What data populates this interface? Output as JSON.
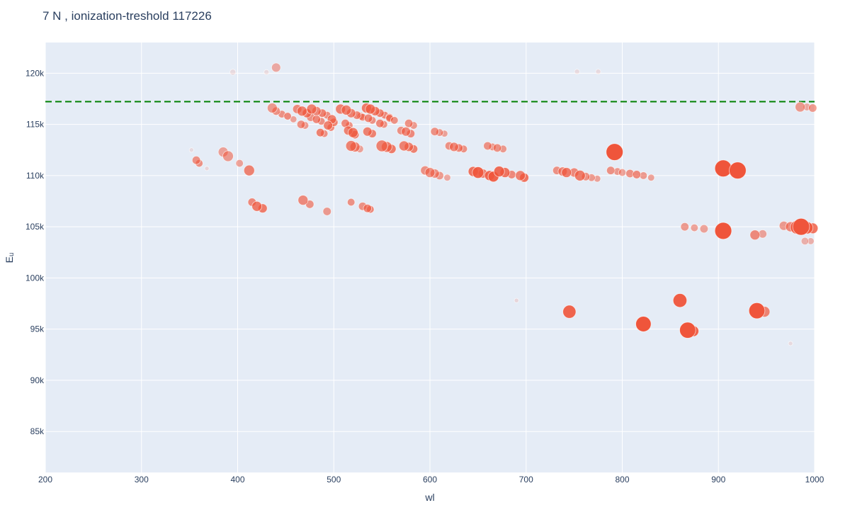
{
  "chart_data": {
    "type": "scatter",
    "title": "7 N , ionization-treshold 117226",
    "xlabel": "wl",
    "ylabel": "Eᵤ",
    "xlim": [
      200,
      1000
    ],
    "ylim": [
      81000,
      123000
    ],
    "x_ticks": [
      200,
      300,
      400,
      500,
      600,
      700,
      800,
      900,
      1000
    ],
    "x_tick_labels": [
      "200",
      "300",
      "400",
      "500",
      "600",
      "700",
      "800",
      "900",
      "1000"
    ],
    "y_ticks": [
      85000,
      90000,
      95000,
      100000,
      105000,
      110000,
      115000,
      120000
    ],
    "y_tick_labels": [
      "85k",
      "90k",
      "95k",
      "100k",
      "105k",
      "110k",
      "115k",
      "120k"
    ],
    "grid": true,
    "colors": {
      "plot_bg": "#e5ecf6",
      "grid": "#ffffff",
      "marker": "#ef553b",
      "threshold_line": "#008000",
      "text": "#2a3f5f"
    },
    "threshold": {
      "label": "ionization-treshold",
      "value": 117226
    },
    "points": [
      [
        395,
        120100,
        0.2,
        0.1
      ],
      [
        430,
        120100,
        0.15,
        0.1
      ],
      [
        440,
        120550,
        0.4,
        0.45
      ],
      [
        753,
        120150,
        0.15,
        0.1
      ],
      [
        775,
        120150,
        0.15,
        0.1
      ],
      [
        352,
        112500,
        0.1,
        0.1
      ],
      [
        357,
        111500,
        0.35,
        0.6
      ],
      [
        360,
        111200,
        0.3,
        0.6
      ],
      [
        368,
        110700,
        0.1,
        0.15
      ],
      [
        385,
        112300,
        0.45,
        0.5
      ],
      [
        390,
        111900,
        0.5,
        0.55
      ],
      [
        402,
        111200,
        0.3,
        0.5
      ],
      [
        412,
        110500,
        0.5,
        0.7
      ],
      [
        436,
        116600,
        0.45,
        0.55
      ],
      [
        440,
        116300,
        0.35,
        0.6
      ],
      [
        446,
        116000,
        0.3,
        0.6
      ],
      [
        452,
        115800,
        0.3,
        0.65
      ],
      [
        458,
        115500,
        0.25,
        0.5
      ],
      [
        462,
        116500,
        0.4,
        0.65
      ],
      [
        467,
        116300,
        0.45,
        0.7
      ],
      [
        472,
        116100,
        0.4,
        0.75
      ],
      [
        477,
        116500,
        0.45,
        0.7
      ],
      [
        482,
        116300,
        0.4,
        0.65
      ],
      [
        488,
        116100,
        0.35,
        0.7
      ],
      [
        493,
        115900,
        0.3,
        0.6
      ],
      [
        476,
        115700,
        0.35,
        0.6
      ],
      [
        482,
        115500,
        0.35,
        0.65
      ],
      [
        487,
        115300,
        0.3,
        0.6
      ],
      [
        498,
        115500,
        0.4,
        0.7
      ],
      [
        500,
        115200,
        0.35,
        0.7
      ],
      [
        466,
        115000,
        0.35,
        0.6
      ],
      [
        470,
        114900,
        0.3,
        0.55
      ],
      [
        494,
        114900,
        0.4,
        0.7
      ],
      [
        497,
        114700,
        0.3,
        0.65
      ],
      [
        486,
        114200,
        0.35,
        0.7
      ],
      [
        490,
        114100,
        0.3,
        0.6
      ],
      [
        507,
        116500,
        0.45,
        0.7
      ],
      [
        513,
        116400,
        0.45,
        0.7
      ],
      [
        518,
        116100,
        0.4,
        0.7
      ],
      [
        524,
        115900,
        0.35,
        0.65
      ],
      [
        528,
        115800,
        0.3,
        0.6
      ],
      [
        534,
        116600,
        0.45,
        0.75
      ],
      [
        538,
        116500,
        0.45,
        0.75
      ],
      [
        543,
        116300,
        0.4,
        0.75
      ],
      [
        548,
        116100,
        0.35,
        0.7
      ],
      [
        553,
        115900,
        0.3,
        0.65
      ],
      [
        558,
        115700,
        0.3,
        0.6
      ],
      [
        530,
        115700,
        0.3,
        0.6
      ],
      [
        536,
        115600,
        0.35,
        0.65
      ],
      [
        540,
        115400,
        0.3,
        0.6
      ],
      [
        558,
        115600,
        0.3,
        0.6
      ],
      [
        563,
        115400,
        0.3,
        0.6
      ],
      [
        512,
        115100,
        0.35,
        0.65
      ],
      [
        516,
        114900,
        0.3,
        0.6
      ],
      [
        548,
        115100,
        0.35,
        0.65
      ],
      [
        552,
        115000,
        0.3,
        0.6
      ],
      [
        578,
        115100,
        0.35,
        0.6
      ],
      [
        583,
        114900,
        0.3,
        0.55
      ],
      [
        515,
        114400,
        0.4,
        0.7
      ],
      [
        520,
        114200,
        0.45,
        0.75
      ],
      [
        522,
        114000,
        0.35,
        0.7
      ],
      [
        535,
        114300,
        0.4,
        0.7
      ],
      [
        540,
        114100,
        0.35,
        0.7
      ],
      [
        570,
        114400,
        0.35,
        0.6
      ],
      [
        575,
        114300,
        0.4,
        0.65
      ],
      [
        580,
        114100,
        0.35,
        0.65
      ],
      [
        518,
        112900,
        0.5,
        0.7
      ],
      [
        522,
        112800,
        0.45,
        0.7
      ],
      [
        527,
        112600,
        0.3,
        0.5
      ],
      [
        550,
        112900,
        0.55,
        0.7
      ],
      [
        555,
        112800,
        0.5,
        0.7
      ],
      [
        560,
        112600,
        0.4,
        0.75
      ],
      [
        573,
        112900,
        0.45,
        0.7
      ],
      [
        578,
        112800,
        0.4,
        0.7
      ],
      [
        583,
        112600,
        0.35,
        0.7
      ],
      [
        605,
        114300,
        0.35,
        0.6
      ],
      [
        610,
        114200,
        0.3,
        0.55
      ],
      [
        615,
        114100,
        0.25,
        0.5
      ],
      [
        620,
        112900,
        0.35,
        0.6
      ],
      [
        625,
        112800,
        0.4,
        0.65
      ],
      [
        630,
        112700,
        0.35,
        0.65
      ],
      [
        635,
        112600,
        0.3,
        0.6
      ],
      [
        660,
        112900,
        0.35,
        0.6
      ],
      [
        665,
        112800,
        0.3,
        0.55
      ],
      [
        670,
        112700,
        0.35,
        0.6
      ],
      [
        676,
        112600,
        0.3,
        0.55
      ],
      [
        595,
        110500,
        0.4,
        0.6
      ],
      [
        600,
        110300,
        0.45,
        0.6
      ],
      [
        605,
        110200,
        0.4,
        0.6
      ],
      [
        610,
        110000,
        0.35,
        0.55
      ],
      [
        618,
        109800,
        0.25,
        0.45
      ],
      [
        645,
        110400,
        0.45,
        0.8
      ],
      [
        650,
        110300,
        0.55,
        0.9
      ],
      [
        655,
        110200,
        0.4,
        0.7
      ],
      [
        662,
        110000,
        0.45,
        0.85
      ],
      [
        666,
        109900,
        0.5,
        0.9
      ],
      [
        672,
        110400,
        0.5,
        0.85
      ],
      [
        678,
        110300,
        0.45,
        0.8
      ],
      [
        685,
        110100,
        0.35,
        0.65
      ],
      [
        694,
        110000,
        0.45,
        0.7
      ],
      [
        698,
        109800,
        0.4,
        0.8
      ],
      [
        732,
        110500,
        0.35,
        0.6
      ],
      [
        738,
        110400,
        0.4,
        0.65
      ],
      [
        742,
        110300,
        0.45,
        0.75
      ],
      [
        750,
        110300,
        0.4,
        0.65
      ],
      [
        756,
        110000,
        0.5,
        0.75
      ],
      [
        762,
        109900,
        0.35,
        0.6
      ],
      [
        768,
        109800,
        0.3,
        0.55
      ],
      [
        774,
        109700,
        0.25,
        0.5
      ],
      [
        788,
        110500,
        0.35,
        0.6
      ],
      [
        795,
        110400,
        0.3,
        0.55
      ],
      [
        800,
        110300,
        0.3,
        0.5
      ],
      [
        808,
        110200,
        0.35,
        0.6
      ],
      [
        815,
        110100,
        0.35,
        0.65
      ],
      [
        822,
        110000,
        0.3,
        0.55
      ],
      [
        830,
        109800,
        0.25,
        0.5
      ],
      [
        792,
        112300,
        0.9,
        1.0
      ],
      [
        415,
        107400,
        0.35,
        0.65
      ],
      [
        420,
        107000,
        0.45,
        0.75
      ],
      [
        426,
        106800,
        0.4,
        0.75
      ],
      [
        468,
        107600,
        0.45,
        0.65
      ],
      [
        475,
        107200,
        0.35,
        0.6
      ],
      [
        493,
        106500,
        0.35,
        0.55
      ],
      [
        518,
        107400,
        0.3,
        0.6
      ],
      [
        530,
        107000,
        0.35,
        0.6
      ],
      [
        535,
        106800,
        0.35,
        0.65
      ],
      [
        538,
        106700,
        0.3,
        0.65
      ],
      [
        690,
        97800,
        0.1,
        0.15
      ],
      [
        745,
        96700,
        0.65,
        0.9
      ],
      [
        860,
        97800,
        0.7,
        0.95
      ],
      [
        822,
        95500,
        0.8,
        1.0
      ],
      [
        868,
        94900,
        0.85,
        1.0
      ],
      [
        874,
        94800,
        0.5,
        0.9
      ],
      [
        905,
        110700,
        0.9,
        1.0
      ],
      [
        920,
        110500,
        0.9,
        1.0
      ],
      [
        905,
        104600,
        0.9,
        1.0
      ],
      [
        865,
        105000,
        0.35,
        0.55
      ],
      [
        875,
        104900,
        0.3,
        0.5
      ],
      [
        885,
        104800,
        0.35,
        0.5
      ],
      [
        940,
        96800,
        0.85,
        1.0
      ],
      [
        948,
        96700,
        0.5,
        0.7
      ],
      [
        938,
        104200,
        0.45,
        0.65
      ],
      [
        946,
        104300,
        0.35,
        0.5
      ],
      [
        968,
        105100,
        0.4,
        0.55
      ],
      [
        975,
        105000,
        0.45,
        0.65
      ],
      [
        982,
        104950,
        0.7,
        0.9
      ],
      [
        986,
        105000,
        0.9,
        1.0
      ],
      [
        992,
        104900,
        0.6,
        0.9
      ],
      [
        998,
        104850,
        0.5,
        0.8
      ],
      [
        985,
        116700,
        0.45,
        0.55
      ],
      [
        992,
        116700,
        0.3,
        0.45
      ],
      [
        998,
        116600,
        0.35,
        0.55
      ],
      [
        990,
        103600,
        0.3,
        0.4
      ],
      [
        996,
        103600,
        0.25,
        0.4
      ],
      [
        975,
        93600,
        0.1,
        0.1
      ]
    ]
  }
}
